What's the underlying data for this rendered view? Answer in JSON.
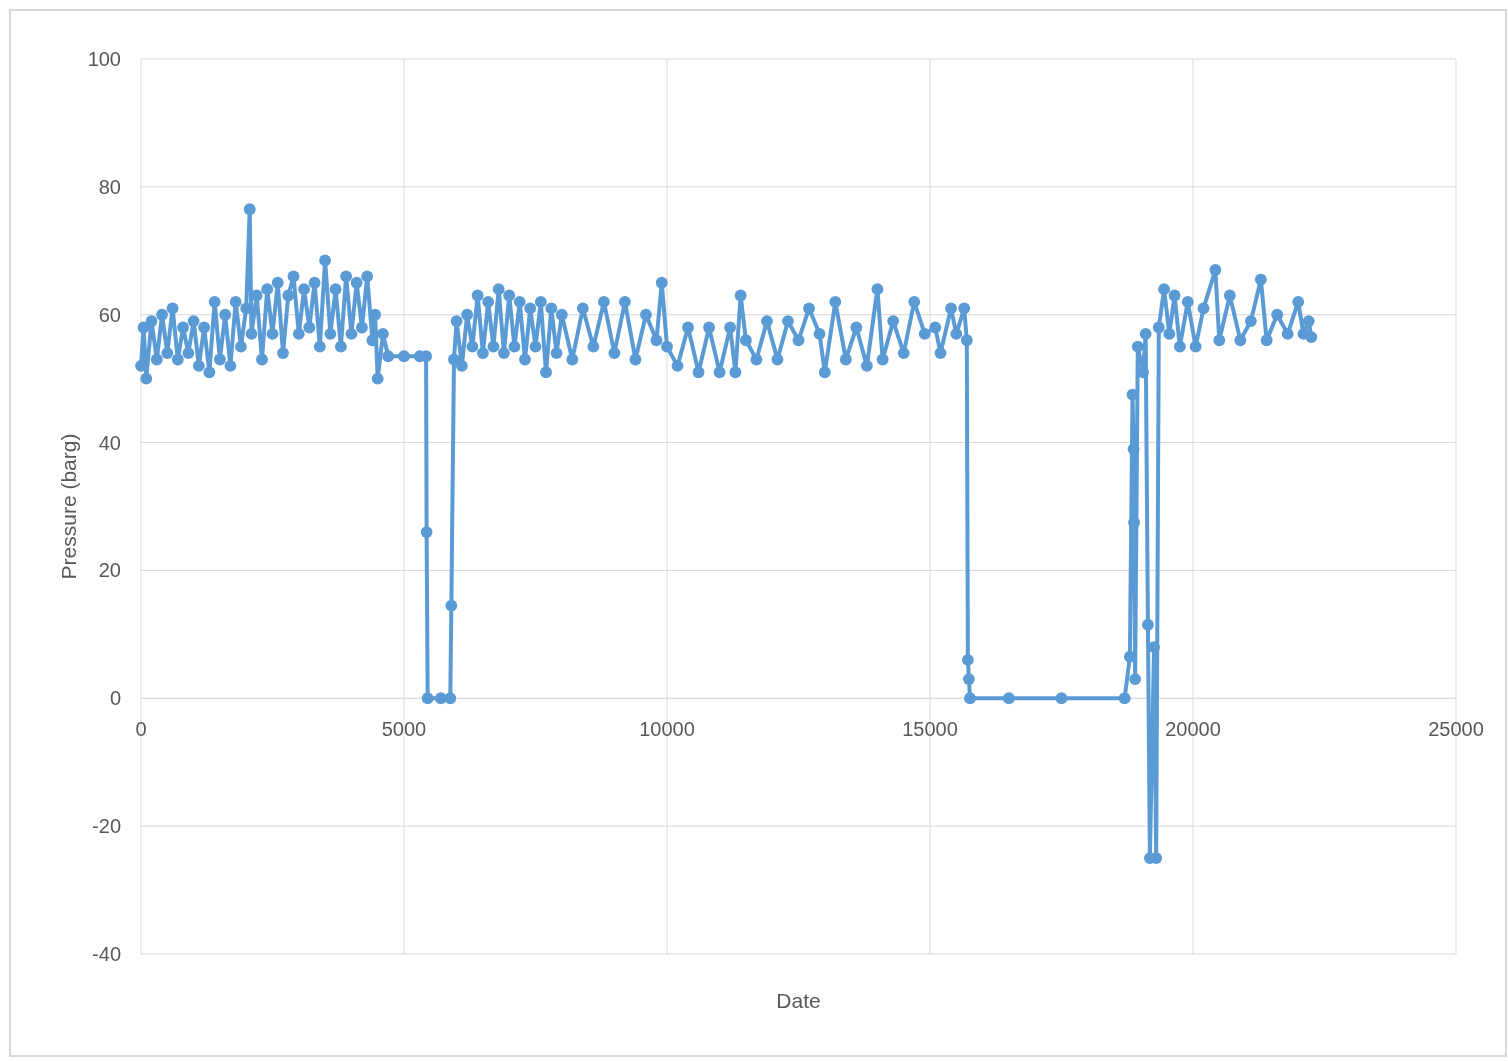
{
  "chart_data": {
    "type": "line",
    "xlabel": "Date",
    "ylabel": "Pressure (barg)",
    "xlim": [
      0,
      25000
    ],
    "xticks": [
      0,
      5000,
      10000,
      15000,
      20000,
      25000
    ],
    "ylim": [
      -40,
      100
    ],
    "yticks": [
      -40,
      -20,
      0,
      20,
      40,
      60,
      80,
      100
    ],
    "grid": true,
    "marker": "circle",
    "line_style": "solid",
    "series": [
      {
        "color": "#5b9bd5",
        "x": [
          0,
          50,
          100,
          200,
          300,
          400,
          500,
          600,
          700,
          800,
          900,
          1000,
          1100,
          1200,
          1300,
          1400,
          1500,
          1600,
          1700,
          1800,
          1900,
          2000,
          2067,
          2100,
          2200,
          2300,
          2400,
          2500,
          2600,
          2700,
          2800,
          2900,
          3000,
          3100,
          3200,
          3300,
          3400,
          3500,
          3600,
          3700,
          3800,
          3900,
          4000,
          4100,
          4200,
          4300,
          4400,
          4450,
          4500,
          4600,
          4700,
          5000,
          5300,
          5420,
          5430,
          5450,
          5700,
          5880,
          5900,
          5950,
          6000,
          6100,
          6200,
          6300,
          6400,
          6500,
          6600,
          6700,
          6800,
          6900,
          7000,
          7100,
          7200,
          7300,
          7400,
          7500,
          7600,
          7700,
          7800,
          7900,
          8000,
          8200,
          8400,
          8600,
          8800,
          9000,
          9200,
          9400,
          9600,
          9800,
          9900,
          10000,
          10200,
          10400,
          10600,
          10800,
          11000,
          11200,
          11300,
          11400,
          11500,
          11700,
          11900,
          12100,
          12300,
          12500,
          12700,
          12900,
          13000,
          13200,
          13400,
          13600,
          13800,
          14000,
          14100,
          14300,
          14500,
          14700,
          14900,
          15100,
          15200,
          15400,
          15500,
          15650,
          15700,
          15720,
          15740,
          15760,
          16500,
          17500,
          18700,
          18800,
          18850,
          18870,
          18880,
          18900,
          18950,
          19050,
          19100,
          19143,
          19180,
          19260,
          19300,
          19350,
          19450,
          19550,
          19650,
          19750,
          19900,
          20050,
          20200,
          20425,
          20500,
          20700,
          20900,
          21100,
          21290,
          21400,
          21600,
          21800,
          22000,
          22100,
          22200,
          22250
        ],
        "values": [
          52,
          58,
          50,
          59,
          53,
          60,
          54,
          61,
          53,
          58,
          54,
          59,
          52,
          58,
          51,
          62,
          53,
          60,
          52,
          62,
          55,
          61,
          76.5,
          57,
          63,
          53,
          64,
          57,
          65,
          54,
          63,
          66,
          57,
          64,
          58,
          65,
          55,
          68.5,
          57,
          64,
          55,
          66,
          57,
          65,
          58,
          66,
          56,
          60,
          50,
          57,
          53.5,
          53.5,
          53.5,
          53.5,
          26,
          0,
          0,
          0,
          14.5,
          53,
          59,
          52,
          60,
          55,
          63,
          54,
          62,
          55,
          64,
          54,
          63,
          55,
          62,
          53,
          61,
          55,
          62,
          51,
          61,
          54,
          60,
          53,
          61,
          55,
          62,
          54,
          62,
          53,
          60,
          56,
          65,
          55,
          52,
          58,
          51,
          58,
          51,
          58,
          51,
          63,
          56,
          53,
          59,
          53,
          59,
          56,
          61,
          57,
          51,
          62,
          53,
          58,
          52,
          64,
          53,
          59,
          54,
          62,
          57,
          58,
          54,
          61,
          57,
          61,
          56,
          6,
          3,
          0,
          0,
          0,
          0,
          6.5,
          47.5,
          39,
          27.5,
          3,
          55,
          51,
          57,
          11.5,
          -25,
          8,
          -25,
          58,
          64,
          57,
          63,
          55,
          62,
          55,
          61,
          67,
          56,
          63,
          56,
          59,
          65.5,
          56,
          60,
          57,
          62,
          57,
          59,
          56.5
        ]
      }
    ]
  }
}
